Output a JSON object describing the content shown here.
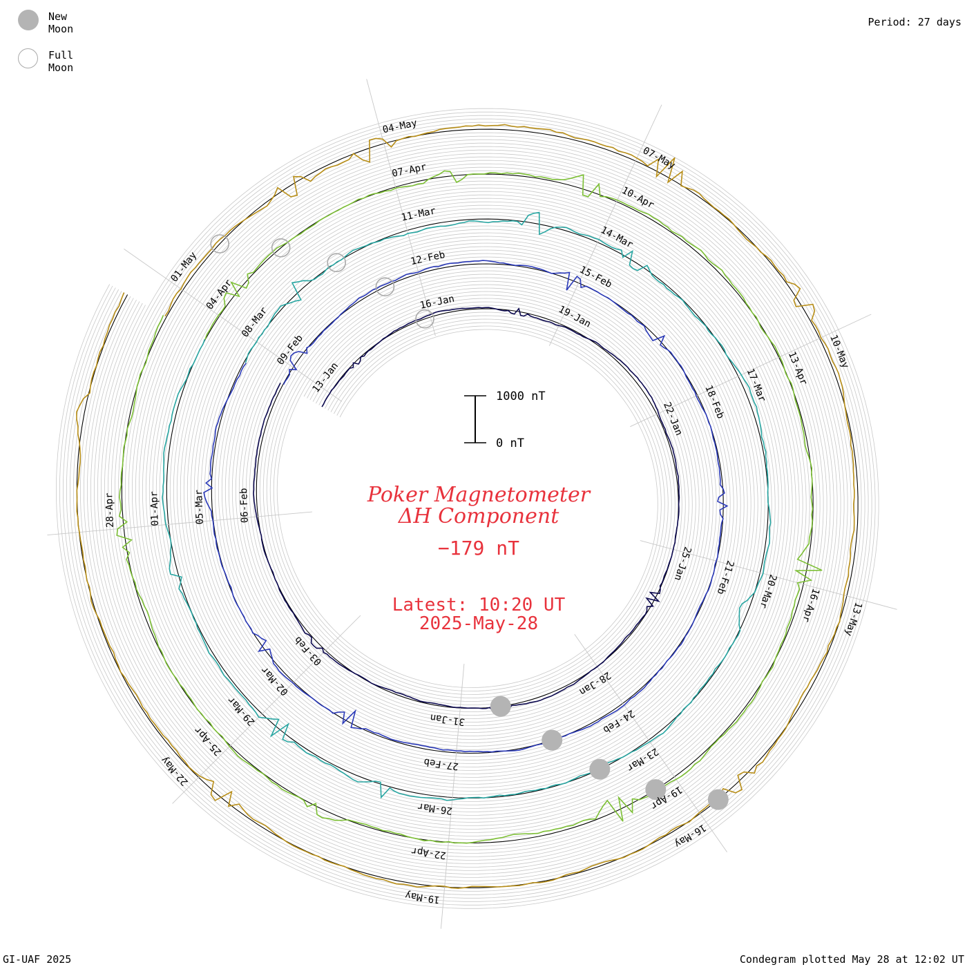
{
  "header": {
    "period": "Period: 27 days"
  },
  "legend": {
    "new_moon": "New Moon",
    "full_moon": "Full Moon"
  },
  "footer": {
    "left": "GI-UAF 2025",
    "right": "Condegram plotted May 28 at 12:02 UT"
  },
  "center": {
    "title_line1": "Poker Magnetometer",
    "title_line2": "ΔH Component",
    "current_value": "−179 nT",
    "latest_time": "Latest: 10:20 UT",
    "latest_date": "2025-May-28"
  },
  "scale_bar": {
    "top_label": "1000 nT",
    "bottom_label": "0 nT"
  },
  "colors": {
    "title": "#e8323c",
    "grid": "#c8c8c8",
    "new_moon": "#b4b4b4"
  },
  "chart_data": {
    "type": "line",
    "title": "Poker Magnetometer ΔH Component",
    "period_days": 27,
    "unit": "nT",
    "series": [
      {
        "month": "Jan",
        "color": "#0d0a50",
        "wobble": 60,
        "date_labels": [
          "13-Jan",
          "16-Jan",
          "19-Jan",
          "22-Jan",
          "25-Jan",
          "28-Jan",
          "31-Jan",
          "03-Feb",
          "06-Feb"
        ],
        "spikes": [
          [
            0.05,
            40
          ],
          [
            0.2,
            -60
          ],
          [
            0.5,
            120
          ],
          [
            0.65,
            -80
          ],
          [
            0.8,
            60
          ]
        ]
      },
      {
        "month": "Feb",
        "color": "#2a39b8",
        "wobble": 80,
        "date_labels": [
          "09-Feb",
          "12-Feb",
          "15-Feb",
          "18-Feb",
          "21-Feb",
          "24-Feb",
          "27-Feb",
          "02-Mar",
          "05-Mar"
        ],
        "spikes": [
          [
            0.02,
            -150
          ],
          [
            0.23,
            180
          ],
          [
            0.3,
            -120
          ],
          [
            0.42,
            -100
          ],
          [
            0.75,
            160
          ],
          [
            0.82,
            120
          ],
          [
            0.92,
            -90
          ]
        ]
      },
      {
        "month": "Mar",
        "color": "#28a6a2",
        "wobble": 120,
        "date_labels": [
          "08-Mar",
          "11-Mar",
          "14-Mar",
          "17-Mar",
          "20-Mar",
          "23-Mar",
          "26-Mar",
          "29-Mar",
          "01-Apr"
        ],
        "spikes": [
          [
            0.05,
            -200
          ],
          [
            0.2,
            220
          ],
          [
            0.26,
            -180
          ],
          [
            0.48,
            160
          ],
          [
            0.72,
            -150
          ],
          [
            0.78,
            200
          ],
          [
            0.88,
            120
          ]
        ]
      },
      {
        "month": "Apr",
        "color": "#7cbf34",
        "wobble": 130,
        "date_labels": [
          "04-Apr",
          "07-Apr",
          "10-Apr",
          "13-Apr",
          "16-Apr",
          "19-Apr",
          "22-Apr",
          "25-Apr",
          "28-Apr"
        ],
        "spikes": [
          [
            0.03,
            -160
          ],
          [
            0.15,
            180
          ],
          [
            0.22,
            -220
          ],
          [
            0.45,
            -250
          ],
          [
            0.6,
            260
          ],
          [
            0.74,
            -120
          ],
          [
            0.9,
            140
          ]
        ]
      },
      {
        "month": "May",
        "color": "#b88e17",
        "wobble": 140,
        "date_labels": [
          "01-May",
          "04-May",
          "07-May",
          "10-May",
          "13-May",
          "16-May",
          "19-May",
          "22-May"
        ],
        "spikes": [
          [
            0.08,
            -200
          ],
          [
            0.12,
            220
          ],
          [
            0.25,
            -240
          ],
          [
            0.33,
            -160
          ],
          [
            0.55,
            150
          ],
          [
            0.78,
            180
          ],
          [
            0.95,
            -120
          ]
        ]
      }
    ],
    "moon_markers": [
      {
        "phase": "new",
        "dates": [
          "29-Jan",
          "27-Feb",
          "29-Mar",
          "28-Apr",
          "27-May"
        ]
      },
      {
        "phase": "full",
        "dates": [
          "13-Jan",
          "12-Feb",
          "14-Mar",
          "13-Apr",
          "12-May"
        ]
      }
    ]
  }
}
